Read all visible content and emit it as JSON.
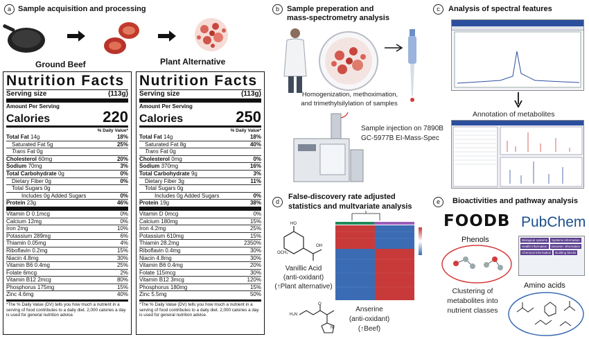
{
  "panels": {
    "a": {
      "letter": "a",
      "title": "Sample acquisition and processing",
      "left_label": "Ground Beef",
      "right_label": "Plant Alternative"
    },
    "b": {
      "letter": "b",
      "title_line1": "Sample preperation and",
      "title_line2": "mass-spectrometry analysis",
      "caption_line1": "Homogenization, methoximation,",
      "caption_line2": "and trimethylsilylation of samples",
      "injection_line1": "Sample injection on 7890B",
      "injection_line2": "GC-5977B EI-Mass-Spec"
    },
    "c": {
      "letter": "c",
      "title": "Analysis of spectral features",
      "annotation": "Annotation of metabolites"
    },
    "d": {
      "letter": "d",
      "title_line1": "False-discovery rate adjusted",
      "title_line2": "statistics and multvariate analysis",
      "vanillic_line1": "Vanillic Acid",
      "vanillic_line2": "(anti-oxidant)",
      "vanillic_line3": "(↑Plant alternative)",
      "anserine_line1": "Anserine",
      "anserine_line2": "(anti-oxidant)",
      "anserine_line3": "(↑Beef)",
      "atom_ho": "HO",
      "atom_och3": "OCH₃",
      "atom_oh": "OH",
      "atom_o": "O",
      "atom_h2n": "H₂N",
      "atom_n": "N"
    },
    "e": {
      "letter": "e",
      "title": "Bioactivities and pathway analysis",
      "foodb": "FOODB",
      "pubchem": "PubChem",
      "phenols": "Phenols",
      "amino_acids": "Amino acids",
      "clustering_line1": "Clustering of",
      "clustering_line2": "metabolites into",
      "clustering_line3": "nutrient classes",
      "pubchem_items": [
        "Biological systems",
        "Systems information",
        "Health information",
        "Genomic information",
        "Chemical information",
        "Building blocks"
      ]
    }
  },
  "nutrition": [
    {
      "title": "Nutrition Facts",
      "serving_label": "Serving size",
      "serving_value": "(113g)",
      "amount_label": "Amount Per Serving",
      "calories_label": "Calories",
      "calories_value": "220",
      "dv_header": "% Daily Value*",
      "rows_main": [
        {
          "label": "Total Fat",
          "amount": "14g",
          "dv": "18%",
          "style": "bold"
        },
        {
          "label": "Saturated Fat 5g",
          "amount": "",
          "dv": "25%",
          "style": "ind1"
        },
        {
          "label": "Trans Fat 0g",
          "amount": "",
          "dv": "",
          "style": "ind1trans"
        },
        {
          "label": "Cholesterol",
          "amount": "60mg",
          "dv": "20%",
          "style": "bold"
        },
        {
          "label": "Sodium",
          "amount": "70mg",
          "dv": "3%",
          "style": "bold"
        },
        {
          "label": "Total Carbohydrate",
          "amount": "0g",
          "dv": "0%",
          "style": "bold"
        },
        {
          "label": "Dietary Fiber 0g",
          "amount": "",
          "dv": "0%",
          "style": "ind1"
        },
        {
          "label": "Total Sugars 0g",
          "amount": "",
          "dv": "",
          "style": "ind1"
        },
        {
          "label": "Includes 0g Added Sugars",
          "amount": "",
          "dv": "0%",
          "style": "ind3"
        },
        {
          "label": "Protein",
          "amount": "23g",
          "dv": "46%",
          "style": "bold"
        }
      ],
      "rows_micro": [
        {
          "label": "Vitamin D 0.1mcg",
          "dv": "0%"
        },
        {
          "label": "Calcium 12mg",
          "dv": "0%"
        },
        {
          "label": "Iron 2mg",
          "dv": "10%"
        },
        {
          "label": "Potassium 289mg",
          "dv": "6%"
        },
        {
          "label": "Thiamin 0.05mg",
          "dv": "4%"
        },
        {
          "label": "Riboflavin 0.2mg",
          "dv": "15%"
        },
        {
          "label": "Niacin 4.8mg",
          "dv": "30%"
        },
        {
          "label": "Vitamin B6 0.4mg",
          "dv": "25%"
        },
        {
          "label": "Folate 6mcg",
          "dv": "2%"
        },
        {
          "label": "Vitamin B12 2mcg",
          "dv": "80%"
        },
        {
          "label": "Phosphorus 175mg",
          "dv": "15%"
        },
        {
          "label": "Zinc 4.6mg",
          "dv": "40%"
        }
      ],
      "footnote": "*The % Daily Value (DV) tells you how much a nutrient in a serving of food contributes to a daily diet. 2,000 calories a day is used for general nutrition advice."
    },
    {
      "title": "Nutrition Facts",
      "serving_label": "Serving size",
      "serving_value": "(113g)",
      "amount_label": "Amount Per Serving",
      "calories_label": "Calories",
      "calories_value": "250",
      "dv_header": "% Daily Value*",
      "rows_main": [
        {
          "label": "Total Fat",
          "amount": "14g",
          "dv": "18%",
          "style": "bold"
        },
        {
          "label": "Saturated Fat 8g",
          "amount": "",
          "dv": "40%",
          "style": "ind1"
        },
        {
          "label": "Trans Fat 0g",
          "amount": "",
          "dv": "",
          "style": "ind1trans"
        },
        {
          "label": "Cholesterol",
          "amount": "0mg",
          "dv": "0%",
          "style": "bold"
        },
        {
          "label": "Sodium",
          "amount": "370mg",
          "dv": "16%",
          "style": "bold"
        },
        {
          "label": "Total Carbohydrate",
          "amount": "9g",
          "dv": "3%",
          "style": "bold"
        },
        {
          "label": "Dietary Fiber 3g",
          "amount": "",
          "dv": "11%",
          "style": "ind1"
        },
        {
          "label": "Total Sugars 0g",
          "amount": "",
          "dv": "",
          "style": "ind1"
        },
        {
          "label": "Includes 0g Added Sugars",
          "amount": "",
          "dv": "0%",
          "style": "ind3"
        },
        {
          "label": "Protein",
          "amount": "19g",
          "dv": "38%",
          "style": "bold"
        }
      ],
      "rows_micro": [
        {
          "label": "Vitamin D 0mcg",
          "dv": "0%"
        },
        {
          "label": "Calcium 180mg",
          "dv": "15%"
        },
        {
          "label": "Iron 4.2mg",
          "dv": "25%"
        },
        {
          "label": "Potassium 610mg",
          "dv": "15%"
        },
        {
          "label": "Thiamin 28.2mg",
          "dv": "2350%"
        },
        {
          "label": "Riboflavin 0.4mg",
          "dv": "30%"
        },
        {
          "label": "Niacin 4.8mg",
          "dv": "30%"
        },
        {
          "label": "Vitamin B6 0.4mg",
          "dv": "20%"
        },
        {
          "label": "Folate 115mcg",
          "dv": "30%"
        },
        {
          "label": "Vitamin B12 3mcg",
          "dv": "120%"
        },
        {
          "label": "Phosphorus 180mg",
          "dv": "15%"
        },
        {
          "label": "Zinc 5.5mg",
          "dv": "50%"
        }
      ],
      "footnote": "*The % Daily Value (DV) tells you how much a nutrient in a serving of food contributes to a daily diet. 2,000 calories a day is used for general nutrition advice."
    }
  ],
  "colors": {
    "heat_red": "#c83a3a",
    "heat_blue": "#3b6cb3",
    "accent_red": "#d23c3c",
    "screen_blue": "#2b4f9e"
  }
}
